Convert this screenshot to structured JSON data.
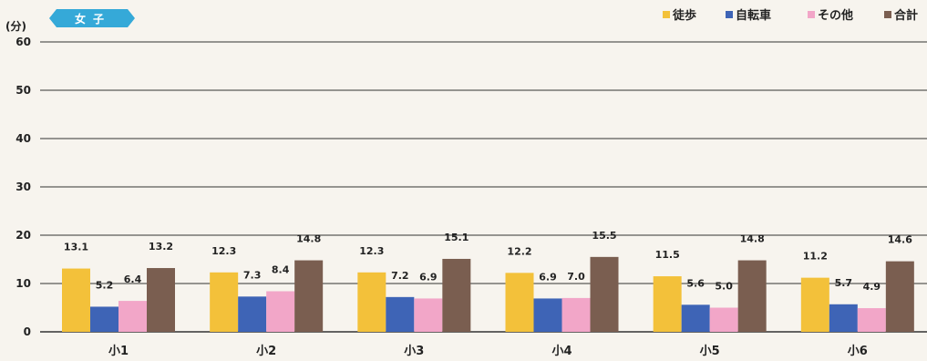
{
  "chart_data": {
    "type": "bar",
    "badge": "女子",
    "ylabel": "(分)",
    "ylim": [
      0,
      60
    ],
    "yticks": [
      0,
      10,
      20,
      30,
      40,
      50,
      60
    ],
    "grid": true,
    "legend_position": "top-right",
    "categories": [
      "小1",
      "小2",
      "小3",
      "小4",
      "小5",
      "小6"
    ],
    "series": [
      {
        "name": "徒歩",
        "color": "#f3c13a",
        "values": [
          13.1,
          12.3,
          12.3,
          12.2,
          11.5,
          11.2
        ]
      },
      {
        "name": "自転車",
        "color": "#3e64b6",
        "values": [
          5.2,
          7.3,
          7.2,
          6.9,
          5.6,
          5.7
        ]
      },
      {
        "name": "その他",
        "color": "#f2a6c8",
        "values": [
          6.4,
          8.4,
          6.9,
          7.0,
          5.0,
          4.9
        ]
      },
      {
        "name": "合計",
        "color": "#7a5e50",
        "values": [
          13.2,
          14.8,
          15.1,
          15.5,
          14.8,
          14.6
        ]
      }
    ]
  }
}
